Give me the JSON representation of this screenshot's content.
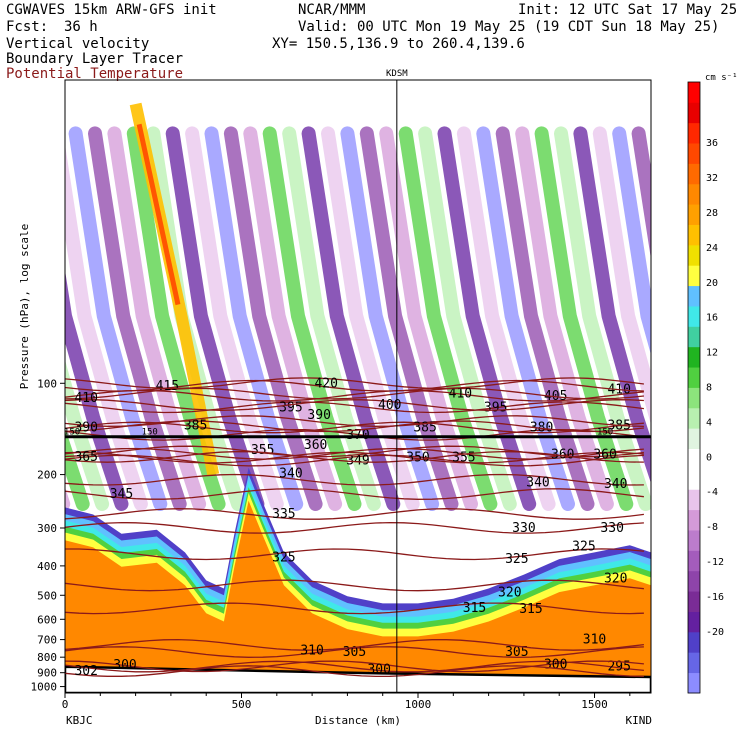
{
  "header": {
    "model": "CGWAVES 15km ARW-GFS init",
    "org": "NCAR/MMM",
    "init": "Init: 12 UTC Sat 17 May 25",
    "fcst_label": "Fcst:",
    "fcst_value": "36 h",
    "valid": "Valid: 00 UTC Mon 19 May 25 (19 CDT Sun 18 May 25)",
    "field1": "Vertical velocity",
    "field2": "Boundary Layer Tracer",
    "field3": "Potential Temperature",
    "xy": "XY= 150.5,136.9 to 260.4,139.6",
    "field3_color": "#8b1a1a"
  },
  "chart_data": {
    "type": "heatmap",
    "xlabel": "Distance (km)",
    "ylabel": "Pressure (hPa), log scale",
    "x_ticks": [
      0,
      500,
      1000,
      1500
    ],
    "x_range": [
      0,
      1660
    ],
    "y_ticks": [
      100,
      200,
      300,
      400,
      500,
      600,
      700,
      800,
      900,
      1000
    ],
    "y_range": [
      1050,
      10
    ],
    "y_scale": "log",
    "left_station": "KBJC",
    "right_station": "KIND",
    "marker_station": "KDSM",
    "marker_x": 940,
    "colorbar": {
      "unit": "cm s⁻¹",
      "labels": [
        "-20",
        "-16",
        "-12",
        "-8",
        "-4",
        "0",
        "4",
        "8",
        "12",
        "16",
        "20",
        "24",
        "28",
        "32",
        "36"
      ],
      "colors": [
        "#8c8cff",
        "#6666e6",
        "#5040c8",
        "#6420a0",
        "#7a2c96",
        "#8e44aa",
        "#a45cbc",
        "#bc7ccc",
        "#d49ad8",
        "#e8c4ec",
        "#ffffff",
        "#ffffff",
        "#e0f4e0",
        "#b8f0b0",
        "#8ce47c",
        "#50d040",
        "#20b420",
        "#40d0a0",
        "#40e8e8",
        "#60c0ff",
        "#ffff40",
        "#f0e000",
        "#ffc000",
        "#ffa000",
        "#ff8800",
        "#ff6a00",
        "#ff4800",
        "#ff2800",
        "#e80000",
        "#ff0000"
      ]
    },
    "theta_contours": [
      {
        "value": 295,
        "labels": [
          [
            1570,
            860
          ]
        ]
      },
      {
        "value": 300,
        "labels": [
          [
            890,
            880
          ],
          [
            1390,
            845
          ],
          [
            170,
            850
          ]
        ]
      },
      {
        "value": 302,
        "labels": [
          [
            60,
            890
          ]
        ]
      },
      {
        "value": 305,
        "labels": [
          [
            820,
            770
          ],
          [
            1280,
            770
          ]
        ]
      },
      {
        "value": 310,
        "labels": [
          [
            700,
            760
          ],
          [
            1500,
            700
          ]
        ]
      },
      {
        "value": 315,
        "labels": [
          [
            1160,
            550
          ],
          [
            1320,
            555
          ]
        ]
      },
      {
        "value": 320,
        "labels": [
          [
            1260,
            490
          ],
          [
            1560,
            440
          ]
        ]
      },
      {
        "value": 325,
        "labels": [
          [
            620,
            375
          ],
          [
            1280,
            380
          ],
          [
            1470,
            345
          ]
        ]
      },
      {
        "value": 330,
        "labels": [
          [
            1300,
            300
          ],
          [
            1550,
            300
          ]
        ]
      },
      {
        "value": 335,
        "labels": [
          [
            620,
            270
          ]
        ]
      },
      {
        "value": 340,
        "labels": [
          [
            640,
            198
          ],
          [
            1340,
            212
          ],
          [
            1560,
            215
          ]
        ]
      },
      {
        "value": 345,
        "labels": [
          [
            160,
            232
          ]
        ]
      },
      {
        "value": 349,
        "labels": [
          [
            830,
            180
          ]
        ]
      },
      {
        "value": 350,
        "labels": [
          [
            1000,
            176
          ]
        ]
      },
      {
        "value": 355,
        "labels": [
          [
            1130,
            176
          ],
          [
            560,
            166
          ]
        ]
      },
      {
        "value": 360,
        "labels": [
          [
            1410,
            172
          ],
          [
            1530,
            172
          ],
          [
            710,
            160
          ]
        ]
      },
      {
        "value": 365,
        "labels": [
          [
            60,
            175
          ]
        ]
      },
      {
        "value": 370,
        "labels": [
          [
            830,
            148
          ]
        ]
      },
      {
        "value": 380,
        "labels": [
          [
            1350,
            140
          ]
        ]
      },
      {
        "value": 385,
        "labels": [
          [
            1020,
            140
          ],
          [
            370,
            138
          ],
          [
            1570,
            138
          ]
        ]
      },
      {
        "value": 390,
        "labels": [
          [
            60,
            140
          ],
          [
            720,
            127
          ]
        ]
      },
      {
        "value": 395,
        "labels": [
          [
            640,
            120
          ],
          [
            1220,
            120
          ]
        ]
      },
      {
        "value": 400,
        "labels": [
          [
            920,
            118
          ]
        ]
      },
      {
        "value": 405,
        "labels": [
          [
            1390,
            110
          ]
        ]
      },
      {
        "value": 410,
        "labels": [
          [
            60,
            112
          ],
          [
            1120,
            108
          ],
          [
            1570,
            105
          ]
        ]
      },
      {
        "value": 415,
        "labels": [
          [
            290,
            102
          ]
        ]
      },
      {
        "value": 420,
        "labels": [
          [
            740,
            100
          ]
        ]
      }
    ],
    "tropopause_labels": [
      "150",
      "150",
      "150"
    ]
  }
}
